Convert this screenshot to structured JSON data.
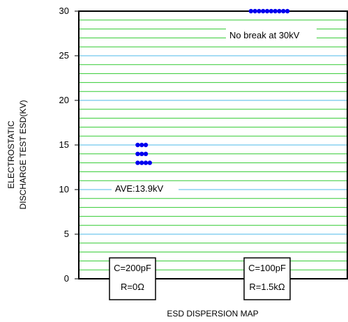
{
  "colors": {
    "major_grid": "#4db8e8",
    "minor_grid": "#33cc33",
    "dots": "#0000ee",
    "frame": "#000000"
  },
  "chart_data": {
    "type": "scatter",
    "xlabel": "ESD DISPERSION MAP",
    "ylabel_lines": [
      "ELECTROSTATIC",
      "DISCHARGE TEST ESD(KV)"
    ],
    "ylim": [
      0,
      30
    ],
    "yticks": [
      0,
      5,
      10,
      15,
      20,
      25,
      30
    ],
    "grid": true,
    "categories": [
      {
        "line1": "C=200pF",
        "line2": "R=0Ω"
      },
      {
        "line1": "C=100pF",
        "line2": "R=1.5kΩ"
      }
    ],
    "series": [
      {
        "category_index": 0,
        "points": [
          {
            "offset": -2,
            "y": 15
          },
          {
            "offset": -1,
            "y": 15
          },
          {
            "offset": 0,
            "y": 15
          },
          {
            "offset": -2,
            "y": 14
          },
          {
            "offset": -1,
            "y": 14
          },
          {
            "offset": 0,
            "y": 14
          },
          {
            "offset": -2,
            "y": 13
          },
          {
            "offset": -1,
            "y": 13
          },
          {
            "offset": 0,
            "y": 13
          },
          {
            "offset": 1,
            "y": 13
          }
        ]
      },
      {
        "category_index": 1,
        "points": [
          {
            "offset": -4.5,
            "y": 30
          },
          {
            "offset": -3.5,
            "y": 30
          },
          {
            "offset": -2.5,
            "y": 30
          },
          {
            "offset": -1.5,
            "y": 30
          },
          {
            "offset": -0.5,
            "y": 30
          },
          {
            "offset": 0.5,
            "y": 30
          },
          {
            "offset": 1.5,
            "y": 30
          },
          {
            "offset": 2.5,
            "y": 30
          },
          {
            "offset": 3.5,
            "y": 30
          },
          {
            "offset": 4.5,
            "y": 30
          }
        ]
      }
    ],
    "annotations": {
      "average": "AVE:13.9kV",
      "no_break": "No break at 30kV"
    }
  }
}
